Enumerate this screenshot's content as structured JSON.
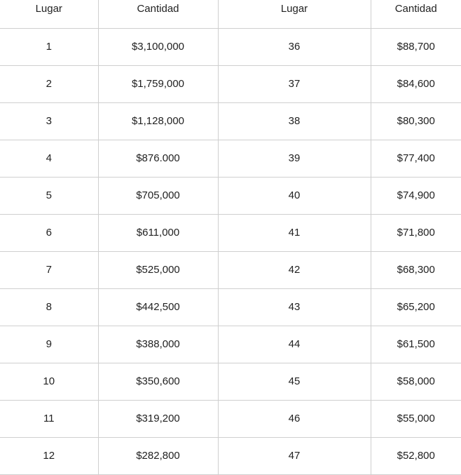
{
  "table": {
    "headers": [
      "Lugar",
      "Cantidad",
      "Lugar",
      "Cantidad"
    ],
    "rows": [
      [
        "1",
        "$3,100,000",
        "36",
        "$88,700"
      ],
      [
        "2",
        "$1,759,000",
        "37",
        "$84,600"
      ],
      [
        "3",
        "$1,128,000",
        "38",
        "$80,300"
      ],
      [
        "4",
        "$876.000",
        "39",
        "$77,400"
      ],
      [
        "5",
        "$705,000",
        "40",
        "$74,900"
      ],
      [
        "6",
        "$611,000",
        "41",
        "$71,800"
      ],
      [
        "7",
        "$525,000",
        "42",
        "$68,300"
      ],
      [
        "8",
        "$442,500",
        "43",
        "$65,200"
      ],
      [
        "9",
        "$388,000",
        "44",
        "$61,500"
      ],
      [
        "10",
        "$350,600",
        "45",
        "$58,000"
      ],
      [
        "11",
        "$319,200",
        "46",
        "$55,000"
      ],
      [
        "12",
        "$282,800",
        "47",
        "$52,800"
      ]
    ]
  }
}
